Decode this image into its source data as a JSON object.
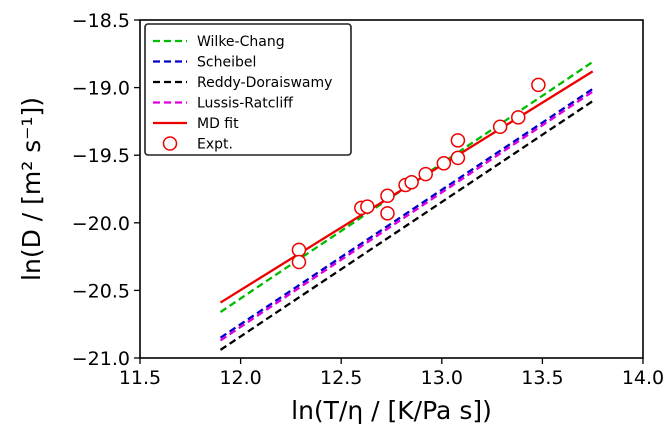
{
  "chart_data": {
    "type": "line",
    "xlabel": "ln(T/η / [K/Pa s])",
    "ylabel": "ln(D / [m² s⁻¹])",
    "xlim": [
      11.5,
      14.0
    ],
    "ylim": [
      -21.0,
      -18.5
    ],
    "x_ticks": [
      "11.5",
      "12.0",
      "12.5",
      "13.0",
      "13.5",
      "14.0"
    ],
    "y_ticks": [
      "−18.5",
      "−19.0",
      "−19.5",
      "−20.0",
      "−20.5",
      "−21.0"
    ],
    "x_tick_values": [
      11.5,
      12.0,
      12.5,
      13.0,
      13.5,
      14.0
    ],
    "y_tick_values": [
      -18.5,
      -19.0,
      -19.5,
      -20.0,
      -20.5,
      -21.0
    ],
    "grid": false,
    "legend_position": "top-left",
    "series": [
      {
        "name": "Wilke-Chang",
        "style": "dashed",
        "color": "#00bb00",
        "x": [
          11.9,
          13.75
        ],
        "y": [
          -20.66,
          -18.81
        ]
      },
      {
        "name": "Scheibel",
        "style": "dashed",
        "color": "#0000cc",
        "x": [
          11.9,
          13.75
        ],
        "y": [
          -20.85,
          -19.01
        ]
      },
      {
        "name": "Reddy-Doraiswamy",
        "style": "dashed",
        "color": "#000000",
        "x": [
          11.9,
          13.75
        ],
        "y": [
          -20.94,
          -19.1
        ]
      },
      {
        "name": "Lussis-Ratcliff",
        "style": "dashed",
        "color": "#dd00dd",
        "x": [
          11.9,
          13.75
        ],
        "y": [
          -20.87,
          -19.03
        ]
      },
      {
        "name": "MD fit",
        "style": "solid",
        "color": "#ee0000",
        "x": [
          11.9,
          13.75
        ],
        "y": [
          -20.59,
          -18.88
        ]
      },
      {
        "name": "Expt.",
        "style": "markers",
        "color": "#ee0000",
        "x": [
          12.29,
          12.29,
          12.6,
          12.63,
          12.73,
          12.73,
          12.82,
          12.85,
          12.92,
          13.01,
          13.08,
          13.08,
          13.29,
          13.38,
          13.48
        ],
        "y": [
          -20.2,
          -20.29,
          -19.89,
          -19.88,
          -19.8,
          -19.93,
          -19.72,
          -19.7,
          -19.64,
          -19.56,
          -19.52,
          -19.39,
          -19.29,
          -19.22,
          -18.98
        ]
      }
    ]
  }
}
